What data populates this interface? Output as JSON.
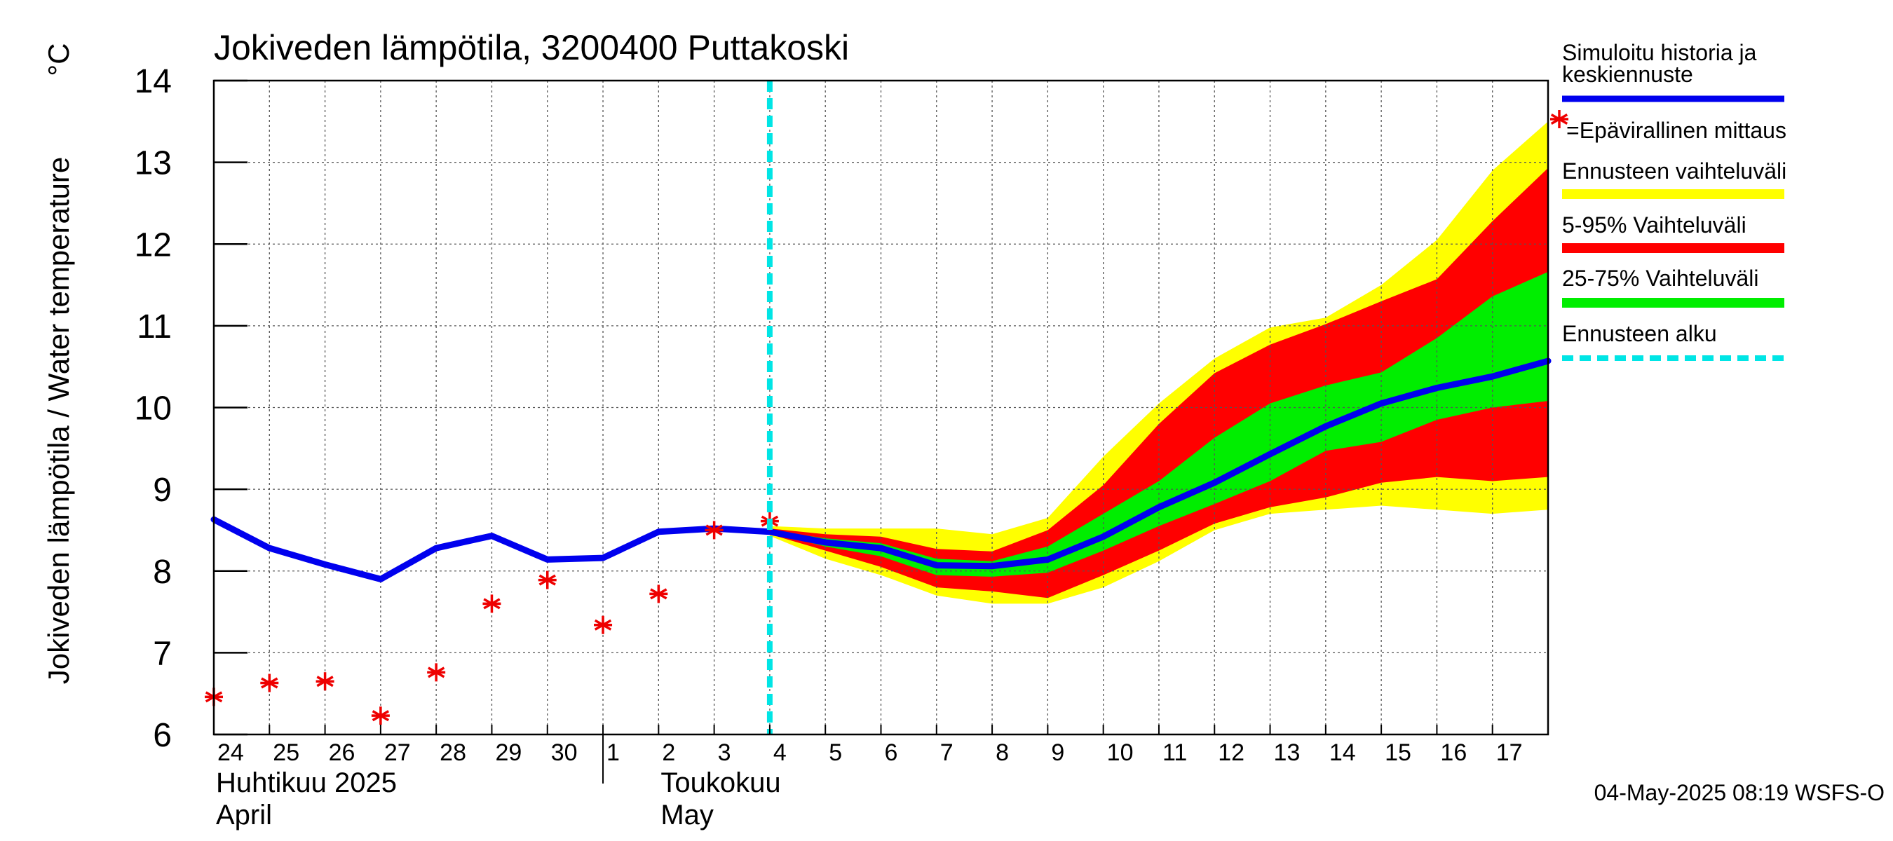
{
  "chart_data": {
    "type": "line",
    "title": "Jokiveden lämpötila, 3200400 Puttakoski",
    "ylabel": "Jokiveden lämpötila / Water temperature",
    "yunit": "°C",
    "ylim": [
      6,
      14
    ],
    "yticks": [
      6,
      7,
      8,
      9,
      10,
      11,
      12,
      13,
      14
    ],
    "xlim": [
      0,
      24
    ],
    "grid": true,
    "day_labels": [
      {
        "x": 0,
        "label": "24"
      },
      {
        "x": 1,
        "label": "25"
      },
      {
        "x": 2,
        "label": "26"
      },
      {
        "x": 3,
        "label": "27"
      },
      {
        "x": 4,
        "label": "28"
      },
      {
        "x": 5,
        "label": "29"
      },
      {
        "x": 6,
        "label": "30"
      },
      {
        "x": 7,
        "label": "1"
      },
      {
        "x": 8,
        "label": "2"
      },
      {
        "x": 9,
        "label": "3"
      },
      {
        "x": 10,
        "label": "4"
      },
      {
        "x": 11,
        "label": "5"
      },
      {
        "x": 12,
        "label": "6"
      },
      {
        "x": 13,
        "label": "7"
      },
      {
        "x": 14,
        "label": "8"
      },
      {
        "x": 15,
        "label": "9"
      },
      {
        "x": 16,
        "label": "10"
      },
      {
        "x": 17,
        "label": "11"
      },
      {
        "x": 18,
        "label": "12"
      },
      {
        "x": 19,
        "label": "13"
      },
      {
        "x": 20,
        "label": "14"
      },
      {
        "x": 21,
        "label": "15"
      },
      {
        "x": 22,
        "label": "16"
      },
      {
        "x": 23,
        "label": "17"
      }
    ],
    "month_labels": [
      {
        "x": 0,
        "line1": "Huhtikuu  2025",
        "line2": "April"
      },
      {
        "x": 8,
        "line1": "Toukokuu",
        "line2": "May"
      }
    ],
    "month_boundary_x": 7,
    "forecast_start_x": 10,
    "series": [
      {
        "name": "Simuloitu historia ja keskiennuste",
        "color": "#0000ee",
        "points": [
          [
            0,
            8.63
          ],
          [
            1,
            8.28
          ],
          [
            2,
            8.08
          ],
          [
            3,
            7.9
          ],
          [
            4,
            8.28
          ],
          [
            5,
            8.43
          ],
          [
            6,
            8.14
          ],
          [
            7,
            8.16
          ],
          [
            8,
            8.48
          ],
          [
            9,
            8.52
          ],
          [
            10,
            8.48
          ],
          [
            11,
            8.35
          ],
          [
            12,
            8.28
          ],
          [
            13,
            8.07
          ],
          [
            14,
            8.06
          ],
          [
            15,
            8.14
          ],
          [
            16,
            8.42
          ],
          [
            17,
            8.78
          ],
          [
            18,
            9.08
          ],
          [
            19,
            9.43
          ],
          [
            20,
            9.77
          ],
          [
            21,
            10.05
          ],
          [
            22,
            10.24
          ],
          [
            23,
            10.38
          ],
          [
            24,
            10.57
          ]
        ]
      }
    ],
    "measurements": {
      "name": "Epävirallinen mittaus",
      "color": "#ee0000",
      "points": [
        [
          0,
          6.46
        ],
        [
          1,
          6.63
        ],
        [
          2,
          6.65
        ],
        [
          3,
          6.23
        ],
        [
          4,
          6.76
        ],
        [
          5,
          7.6
        ],
        [
          6,
          7.89
        ],
        [
          7,
          7.34
        ],
        [
          8,
          7.72
        ],
        [
          9,
          8.5
        ],
        [
          10,
          8.61
        ]
      ]
    },
    "bands": [
      {
        "name": "Ennusteen vaihteluväli",
        "color": "#ffff00",
        "x": [
          10,
          11,
          12,
          13,
          14,
          15,
          16,
          17,
          18,
          19,
          20,
          21,
          22,
          23,
          24
        ],
        "upper": [
          8.55,
          8.52,
          8.52,
          8.52,
          8.45,
          8.65,
          9.4,
          10.05,
          10.6,
          10.98,
          11.1,
          11.5,
          12.05,
          12.9,
          13.5
        ],
        "lower": [
          8.43,
          8.15,
          7.95,
          7.7,
          7.6,
          7.6,
          7.8,
          8.12,
          8.5,
          8.7,
          8.75,
          8.8,
          8.75,
          8.7,
          8.75
        ]
      },
      {
        "name": "5-95% Vaihteluväli",
        "color": "#ff0000",
        "x": [
          10,
          11,
          12,
          13,
          14,
          15,
          16,
          17,
          18,
          19,
          20,
          21,
          22,
          23,
          24
        ],
        "upper": [
          8.52,
          8.45,
          8.42,
          8.27,
          8.24,
          8.5,
          9.05,
          9.8,
          10.42,
          10.77,
          11.02,
          11.3,
          11.57,
          12.28,
          12.93
        ],
        "lower": [
          8.45,
          8.25,
          8.05,
          7.8,
          7.75,
          7.67,
          7.95,
          8.25,
          8.58,
          8.78,
          8.9,
          9.08,
          9.15,
          9.1,
          9.15
        ]
      },
      {
        "name": "25-75% Vaihteluväli",
        "color": "#00ee00",
        "x": [
          10,
          11,
          12,
          13,
          14,
          15,
          16,
          17,
          18,
          19,
          20,
          21,
          22,
          23,
          24
        ],
        "upper": [
          8.5,
          8.4,
          8.34,
          8.15,
          8.12,
          8.3,
          8.7,
          9.1,
          9.63,
          10.05,
          10.27,
          10.43,
          10.85,
          11.36,
          11.66
        ],
        "lower": [
          8.47,
          8.3,
          8.18,
          7.95,
          7.93,
          7.98,
          8.25,
          8.55,
          8.82,
          9.1,
          9.47,
          9.58,
          9.85,
          10.0,
          10.08
        ]
      }
    ],
    "legend": [
      {
        "label": "Simuloitu historia ja",
        "label2": "keskiennuste",
        "color": "#0000ee",
        "style": "line"
      },
      {
        "label": "=Epävirallinen mittaus",
        "color": "#ee0000",
        "style": "marker"
      },
      {
        "label": "Ennusteen vaihteluväli",
        "color": "#ffff00",
        "style": "line"
      },
      {
        "label": "5-95% Vaihteluväli",
        "color": "#ff0000",
        "style": "line"
      },
      {
        "label": "25-75% Vaihteluväli",
        "color": "#00ee00",
        "style": "line"
      },
      {
        "label": "Ennusteen alku",
        "color": "#00e5e5",
        "style": "dashed"
      }
    ],
    "footer": "04-May-2025 08:19 WSFS-O"
  }
}
